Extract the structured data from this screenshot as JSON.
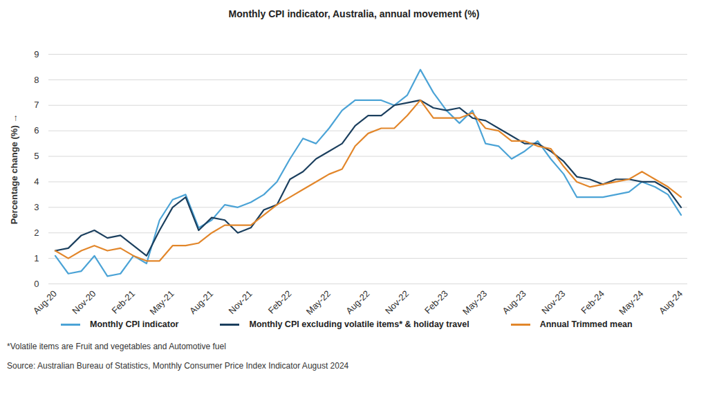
{
  "chart_data": {
    "type": "line",
    "title": "Monthly CPI indicator, Australia, annual movement (%)",
    "y_label": "Percentage change (%)",
    "categories": [
      "Aug-20",
      null,
      null,
      "Nov-20",
      null,
      null,
      "Feb-21",
      null,
      null,
      "May-21",
      null,
      null,
      "Aug-21",
      null,
      null,
      "Nov-21",
      null,
      null,
      "Feb-22",
      null,
      null,
      "May-22",
      null,
      null,
      "Aug-22",
      null,
      null,
      "Nov-22",
      null,
      null,
      "Feb-23",
      null,
      null,
      "May-23",
      null,
      null,
      "Aug-23",
      null,
      null,
      "Nov-23",
      null,
      null,
      "Feb-24",
      null,
      null,
      "May-24",
      null,
      null,
      "Aug-24"
    ],
    "series": [
      {
        "name": "Monthly CPI indicator",
        "color": "#4ba3d6",
        "values": [
          1.1,
          0.4,
          0.5,
          1.1,
          0.3,
          0.4,
          1.1,
          0.8,
          2.5,
          3.3,
          3.5,
          2.2,
          2.5,
          3.1,
          3.0,
          3.2,
          3.5,
          4.0,
          4.9,
          5.7,
          5.5,
          6.1,
          6.8,
          7.2,
          7.2,
          7.2,
          7.0,
          7.4,
          8.4,
          7.5,
          6.8,
          6.3,
          6.8,
          5.5,
          5.4,
          4.9,
          5.2,
          5.6,
          4.9,
          4.3,
          3.4,
          3.4,
          3.4,
          3.5,
          3.6,
          4.0,
          3.8,
          3.5,
          2.7
        ]
      },
      {
        "name": "Monthly CPI excluding volatile items* & holiday travel",
        "color": "#1b3f5e",
        "values": [
          1.3,
          1.4,
          1.9,
          2.1,
          1.8,
          1.9,
          1.5,
          1.1,
          2.1,
          3.0,
          3.4,
          2.1,
          2.6,
          2.5,
          2.0,
          2.2,
          2.9,
          3.1,
          4.1,
          4.4,
          4.9,
          5.2,
          5.5,
          6.2,
          6.6,
          6.6,
          7.0,
          7.1,
          7.2,
          6.9,
          6.8,
          6.9,
          6.5,
          6.4,
          6.1,
          5.8,
          5.5,
          5.5,
          5.2,
          4.8,
          4.2,
          4.1,
          3.9,
          4.1,
          4.1,
          4.0,
          4.0,
          3.7,
          3.0
        ]
      },
      {
        "name": "Annual Trimmed mean",
        "color": "#e2862a",
        "values": [
          1.3,
          1.0,
          1.3,
          1.5,
          1.3,
          1.4,
          1.1,
          0.9,
          0.9,
          1.5,
          1.5,
          1.6,
          2.0,
          2.3,
          2.3,
          2.3,
          2.7,
          3.1,
          3.4,
          3.7,
          4.0,
          4.3,
          4.5,
          5.4,
          5.9,
          6.1,
          6.1,
          6.6,
          7.2,
          6.5,
          6.5,
          6.5,
          6.7,
          6.1,
          6.0,
          5.6,
          5.6,
          5.4,
          5.3,
          4.6,
          4.0,
          3.8,
          3.9,
          4.0,
          4.1,
          4.4,
          4.1,
          3.8,
          3.4
        ]
      }
    ],
    "ylim": [
      0,
      9
    ],
    "yticks": [
      0,
      1,
      2,
      3,
      4,
      5,
      6,
      7,
      8,
      9
    ],
    "grid": true,
    "legend": "bottom",
    "footnote": "*Volatile items are Fruit and vegetables and Automotive fuel",
    "source": "Source: Australian Bureau of Statistics, Monthly Consumer Price Index Indicator August 2024"
  }
}
